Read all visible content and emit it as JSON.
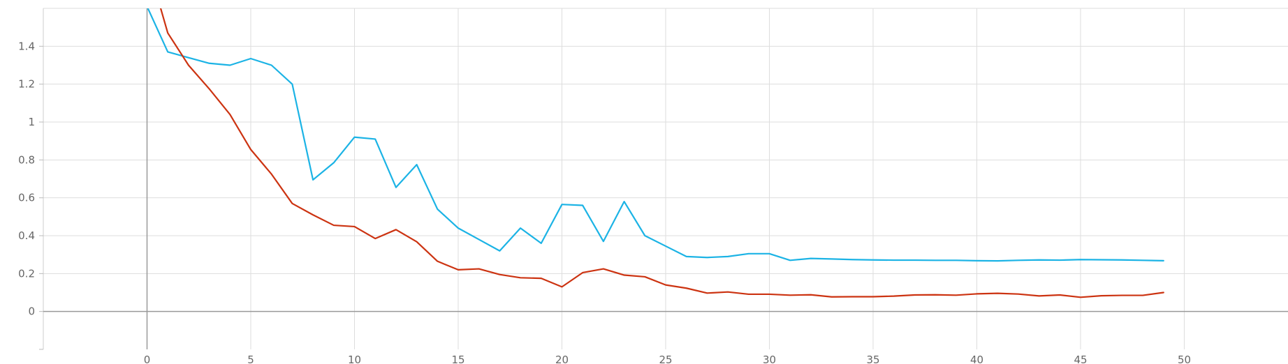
{
  "chart_data": {
    "type": "line",
    "title": "",
    "xlabel": "",
    "ylabel": "",
    "xlim": [
      -5,
      55
    ],
    "ylim": [
      -0.2,
      1.6
    ],
    "grid": true,
    "x_ticks": [
      0,
      5,
      10,
      15,
      20,
      25,
      30,
      35,
      40,
      45,
      50
    ],
    "y_ticks": [
      0,
      0.2,
      0.4,
      0.6,
      0.8,
      1,
      1.2,
      1.4
    ],
    "x_tick_labels": [
      "0",
      "5",
      "10",
      "15",
      "20",
      "25",
      "30",
      "35",
      "40",
      "45",
      "50"
    ],
    "y_tick_labels": [
      "0",
      "0.2",
      "0.4",
      "0.6",
      "0.8",
      "1",
      "1.2",
      "1.4"
    ],
    "series": [
      {
        "color": "#1bb3e5",
        "x": [
          0,
          1,
          2,
          3,
          4,
          5,
          6,
          7,
          8,
          9,
          10,
          11,
          12,
          13,
          14,
          15,
          16,
          17,
          18,
          19,
          20,
          21,
          22,
          23,
          24,
          25,
          26,
          27,
          28,
          29,
          30,
          31,
          32,
          33,
          34,
          35,
          36,
          37,
          38,
          39,
          40,
          41,
          42,
          43,
          44,
          45,
          46,
          47,
          48,
          49
        ],
        "y": [
          1.61,
          1.37,
          1.34,
          1.31,
          1.3,
          1.335,
          1.3,
          1.2,
          0.695,
          0.785,
          0.92,
          0.91,
          0.655,
          0.775,
          0.54,
          0.44,
          0.38,
          0.32,
          0.44,
          0.36,
          0.565,
          0.56,
          0.37,
          0.58,
          0.4,
          0.345,
          0.29,
          0.285,
          0.29,
          0.305,
          0.305,
          0.27,
          0.28,
          0.277,
          0.274,
          0.272,
          0.271,
          0.271,
          0.27,
          0.27,
          0.268,
          0.267,
          0.27,
          0.272,
          0.271,
          0.274,
          0.273,
          0.272,
          0.27,
          0.268
        ]
      },
      {
        "color": "#cc3311",
        "x": [
          0,
          1,
          2,
          3,
          4,
          5,
          6,
          7,
          8,
          9,
          10,
          11,
          12,
          13,
          14,
          15,
          16,
          17,
          18,
          19,
          20,
          21,
          22,
          23,
          24,
          25,
          26,
          27,
          28,
          29,
          30,
          31,
          32,
          33,
          34,
          35,
          36,
          37,
          38,
          39,
          40,
          41,
          42,
          43,
          44,
          45,
          46,
          47,
          48,
          49
        ],
        "y": [
          1.85,
          1.47,
          1.3,
          1.175,
          1.04,
          0.855,
          0.725,
          0.57,
          0.51,
          0.455,
          0.448,
          0.385,
          0.432,
          0.368,
          0.265,
          0.22,
          0.225,
          0.195,
          0.178,
          0.175,
          0.13,
          0.205,
          0.225,
          0.192,
          0.183,
          0.14,
          0.123,
          0.097,
          0.103,
          0.091,
          0.091,
          0.086,
          0.088,
          0.077,
          0.078,
          0.078,
          0.081,
          0.087,
          0.088,
          0.086,
          0.093,
          0.096,
          0.092,
          0.082,
          0.087,
          0.075,
          0.083,
          0.085,
          0.085,
          0.1
        ]
      }
    ]
  }
}
